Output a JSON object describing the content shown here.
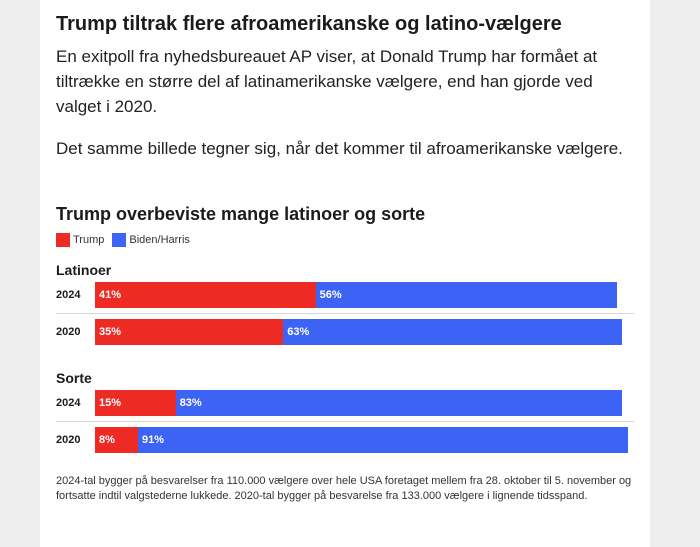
{
  "article": {
    "headline": "Trump tiltrak flere afroamerikanske og latino-vælgere",
    "intro": "En exitpoll fra nyhedsbureauet AP viser, at Donald Trump har formået at tiltrække en større del af latinamerikanske vælgere, end han gjorde ved valget i 2020.",
    "intro2": "Det samme billede tegner sig, når det kommer til afroamerikanske vælgere."
  },
  "chart_data": {
    "type": "bar",
    "orientation": "horizontal-stacked",
    "title": "Trump overbeviste mange latinoer og sorte",
    "legend_position": "top-left",
    "series": [
      {
        "name": "Trump",
        "color": "#ee2a24"
      },
      {
        "name": "Biden/Harris",
        "color": "#3d63f5"
      }
    ],
    "groups": [
      {
        "label": "Latinoer",
        "rows": [
          {
            "year": "2024",
            "trump": 41,
            "other": 56,
            "trump_label": "41%",
            "other_label": "56%"
          },
          {
            "year": "2020",
            "trump": 35,
            "other": 63,
            "trump_label": "35%",
            "other_label": "63%"
          }
        ]
      },
      {
        "label": "Sorte",
        "rows": [
          {
            "year": "2024",
            "trump": 15,
            "other": 83,
            "trump_label": "15%",
            "other_label": "83%"
          },
          {
            "year": "2020",
            "trump": 8,
            "other": 91,
            "trump_label": "8%",
            "other_label": "91%"
          }
        ]
      }
    ],
    "xlim": [
      0,
      100
    ],
    "footnote": "2024-tal bygger på besvarelser fra 110.000 vælgere over hele USA foretaget mellem fra 28. oktober til 5. november og fortsatte indtil valgstederne lukkede. 2020-tal bygger på besvarelse fra 133.000 vælgere i lignende tidsspand."
  }
}
